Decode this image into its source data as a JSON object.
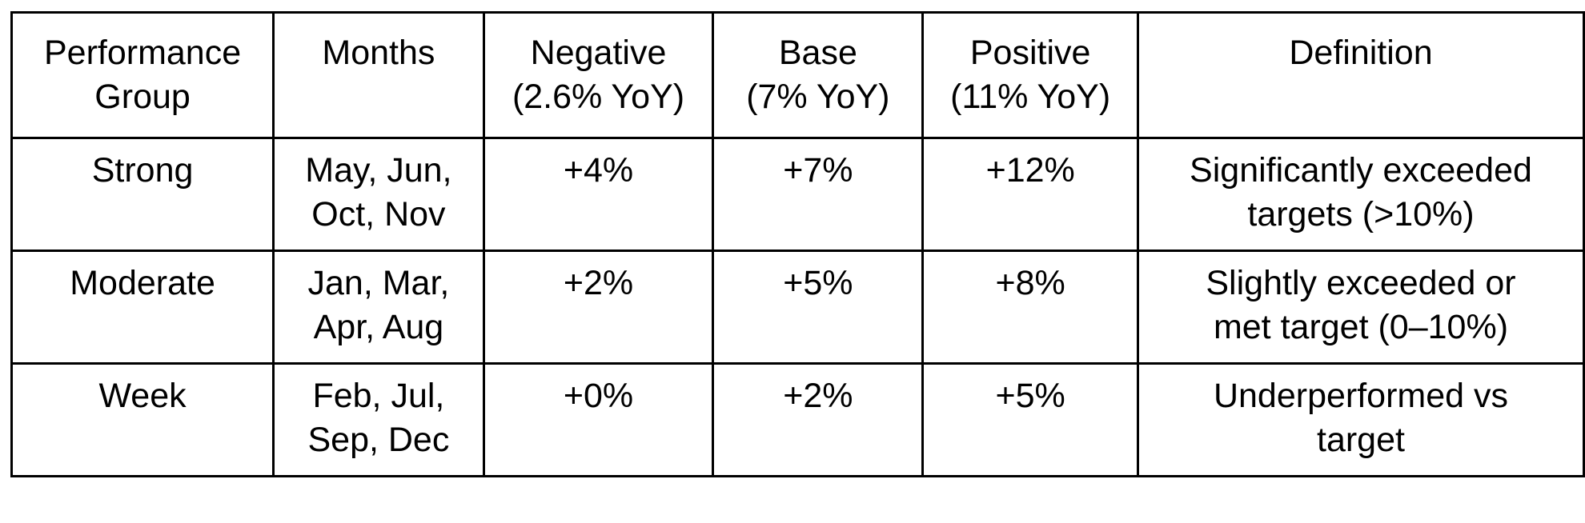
{
  "table": {
    "headers": [
      "Performance\nGroup",
      "Months",
      "Negative\n(2.6% YoY)",
      "Base\n(7% YoY)",
      "Positive\n(11% YoY)",
      "Definition"
    ],
    "rows": [
      {
        "group": "Strong",
        "months": "May, Jun,\nOct, Nov",
        "negative": "+4%",
        "base": "+7%",
        "positive": "+12%",
        "definition": "Significantly exceeded\ntargets (>10%)"
      },
      {
        "group": "Moderate",
        "months": "Jan, Mar,\nApr, Aug",
        "negative": "+2%",
        "base": "+5%",
        "positive": "+8%",
        "definition": "Slightly exceeded or\nmet target (0–10%)"
      },
      {
        "group": "Week",
        "months": "Feb, Jul,\nSep, Dec",
        "negative": "+0%",
        "base": "+2%",
        "positive": "+5%",
        "definition": "Underperformed vs\ntarget"
      }
    ]
  }
}
